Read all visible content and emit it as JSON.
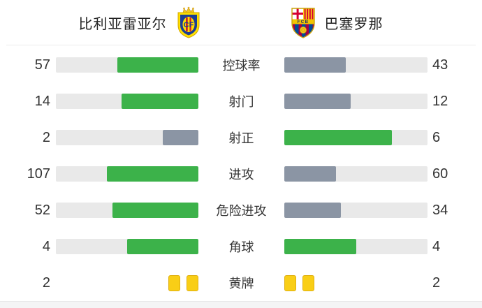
{
  "header": {
    "home": {
      "name": "比利亚雷亚尔",
      "crest": "villarreal-crest"
    },
    "away": {
      "name": "巴塞罗那",
      "crest": "barcelona-crest"
    }
  },
  "colors": {
    "green": "#3cb24a",
    "slate": "#8b95a4",
    "track": "#e9e9e9",
    "card_yellow": "#f9ce16",
    "card_border": "#dfaf10"
  },
  "stats": {
    "rows": [
      {
        "label": "控球率",
        "home": 57,
        "away": 43,
        "home_color": "green",
        "away_color": "slate",
        "type": "bar"
      },
      {
        "label": "射门",
        "home": 14,
        "away": 12,
        "home_color": "green",
        "away_color": "slate",
        "type": "bar"
      },
      {
        "label": "射正",
        "home": 2,
        "away": 6,
        "home_color": "slate",
        "away_color": "green",
        "type": "bar"
      },
      {
        "label": "进攻",
        "home": 107,
        "away": 60,
        "home_color": "green",
        "away_color": "slate",
        "type": "bar"
      },
      {
        "label": "危险进攻",
        "home": 52,
        "away": 34,
        "home_color": "green",
        "away_color": "slate",
        "type": "bar"
      },
      {
        "label": "角球",
        "home": 4,
        "away": 4,
        "home_color": "green",
        "away_color": "green",
        "type": "bar"
      },
      {
        "label": "黄牌",
        "home": 2,
        "away": 2,
        "type": "cards"
      }
    ]
  },
  "chart_data": {
    "type": "bar",
    "orientation": "horizontal-paired",
    "title": "比利亚雷亚尔 vs 巴塞罗那",
    "categories": [
      "控球率",
      "射门",
      "射正",
      "进攻",
      "危险进攻",
      "角球",
      "黄牌"
    ],
    "series": [
      {
        "name": "比利亚雷亚尔",
        "values": [
          57,
          14,
          2,
          107,
          52,
          4,
          2
        ]
      },
      {
        "name": "巴塞罗那",
        "values": [
          43,
          12,
          6,
          60,
          34,
          4,
          2
        ]
      }
    ],
    "legend_position": "top",
    "grid": false,
    "notes": "Each bar fills value/(home+away) of its track, anchored toward the center label; leading value is green (#3cb24a), trailing value slate gray (#8b95a4); 黄牌 row rendered as yellow card icons instead of bars."
  }
}
